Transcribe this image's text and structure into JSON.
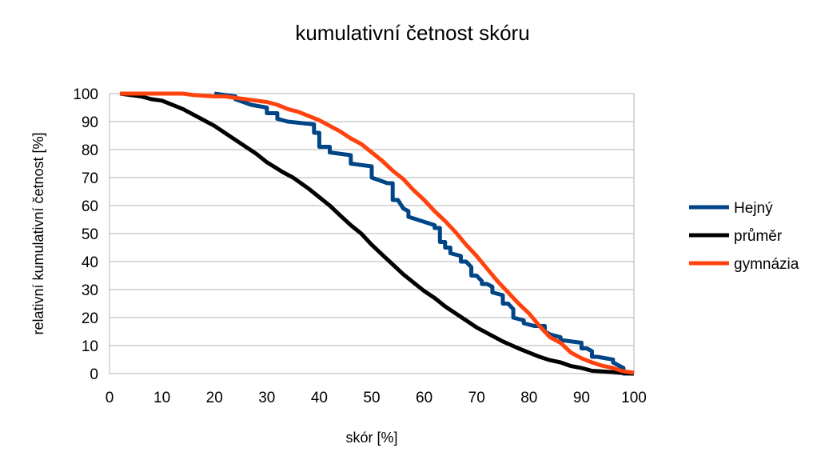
{
  "chart_data": {
    "type": "line",
    "title": "kumulativní četnost skóru",
    "xlabel": "skór [%]",
    "ylabel": "relativní kumulativní četnost [%]",
    "xlim": [
      0,
      100
    ],
    "ylim": [
      0,
      100
    ],
    "xticks": [
      0,
      10,
      20,
      30,
      40,
      50,
      60,
      70,
      80,
      90,
      100
    ],
    "yticks": [
      0,
      10,
      20,
      30,
      40,
      50,
      60,
      70,
      80,
      90,
      100
    ],
    "grid": "horizontal",
    "legend_position": "right",
    "series": [
      {
        "name": "Hejný",
        "color": "#004586",
        "points": [
          [
            20,
            100
          ],
          [
            24,
            99
          ],
          [
            24,
            98
          ],
          [
            27,
            96
          ],
          [
            30,
            95
          ],
          [
            30,
            93
          ],
          [
            32,
            93
          ],
          [
            32,
            91
          ],
          [
            34,
            90
          ],
          [
            39,
            89
          ],
          [
            39,
            86
          ],
          [
            40,
            86
          ],
          [
            40,
            81
          ],
          [
            42,
            81
          ],
          [
            42,
            79
          ],
          [
            46,
            78
          ],
          [
            46,
            75
          ],
          [
            50,
            74
          ],
          [
            50,
            70
          ],
          [
            53,
            68
          ],
          [
            54,
            68
          ],
          [
            54,
            62
          ],
          [
            55,
            62
          ],
          [
            56,
            59
          ],
          [
            57,
            58
          ],
          [
            57,
            56
          ],
          [
            62,
            53
          ],
          [
            62,
            52
          ],
          [
            63,
            52
          ],
          [
            63,
            47
          ],
          [
            64,
            47
          ],
          [
            64,
            45
          ],
          [
            65,
            45
          ],
          [
            65,
            43
          ],
          [
            67,
            42
          ],
          [
            67,
            40
          ],
          [
            68,
            40
          ],
          [
            69,
            38
          ],
          [
            69,
            35
          ],
          [
            70,
            35
          ],
          [
            71,
            33
          ],
          [
            71,
            32
          ],
          [
            72,
            32
          ],
          [
            73,
            31
          ],
          [
            73,
            29
          ],
          [
            75,
            28
          ],
          [
            75,
            25
          ],
          [
            76,
            25
          ],
          [
            77,
            23
          ],
          [
            77,
            20
          ],
          [
            79,
            19
          ],
          [
            79,
            18
          ],
          [
            81,
            17
          ],
          [
            83,
            17
          ],
          [
            83,
            15
          ],
          [
            84,
            14
          ],
          [
            86,
            13
          ],
          [
            86,
            12
          ],
          [
            90,
            11
          ],
          [
            90,
            9
          ],
          [
            91,
            9
          ],
          [
            92,
            8
          ],
          [
            92,
            6
          ],
          [
            93,
            6
          ],
          [
            96,
            5
          ],
          [
            96,
            4
          ],
          [
            97,
            3
          ],
          [
            98,
            2
          ],
          [
            98,
            0
          ],
          [
            100,
            0
          ]
        ]
      },
      {
        "name": "průměr",
        "color": "#000000",
        "points": [
          [
            2,
            100
          ],
          [
            6,
            99
          ],
          [
            8,
            98
          ],
          [
            10,
            97.5
          ],
          [
            14,
            94.5
          ],
          [
            20,
            88.5
          ],
          [
            24,
            83.5
          ],
          [
            28,
            78.5
          ],
          [
            30,
            75.5
          ],
          [
            33,
            72
          ],
          [
            35,
            70
          ],
          [
            38,
            66
          ],
          [
            40,
            63
          ],
          [
            42,
            60
          ],
          [
            44,
            56.5
          ],
          [
            46,
            53
          ],
          [
            48,
            50
          ],
          [
            50,
            46
          ],
          [
            52,
            42.5
          ],
          [
            54,
            39
          ],
          [
            56,
            35.5
          ],
          [
            58,
            32.5
          ],
          [
            60,
            29.5
          ],
          [
            62,
            27
          ],
          [
            64,
            24
          ],
          [
            66,
            21.5
          ],
          [
            68,
            19
          ],
          [
            70,
            16.5
          ],
          [
            72,
            14.5
          ],
          [
            75,
            11.5
          ],
          [
            78,
            9
          ],
          [
            80,
            7.5
          ],
          [
            82,
            6
          ],
          [
            84,
            4.8
          ],
          [
            86,
            4
          ],
          [
            88,
            2.7
          ],
          [
            90,
            2
          ],
          [
            92,
            1
          ],
          [
            94,
            0.8
          ],
          [
            96,
            0.5
          ],
          [
            98,
            0.2
          ],
          [
            100,
            0
          ]
        ]
      },
      {
        "name": "gymnázia",
        "color": "#ff420e",
        "points": [
          [
            2,
            100
          ],
          [
            10,
            100
          ],
          [
            14,
            100
          ],
          [
            16,
            99.5
          ],
          [
            20,
            99
          ],
          [
            22,
            99
          ],
          [
            24,
            98.5
          ],
          [
            26,
            98
          ],
          [
            28,
            97.5
          ],
          [
            30,
            97
          ],
          [
            32,
            96
          ],
          [
            34,
            94.5
          ],
          [
            36,
            93.5
          ],
          [
            38,
            92
          ],
          [
            40,
            90.5
          ],
          [
            42,
            88.5
          ],
          [
            44,
            86.5
          ],
          [
            46,
            84
          ],
          [
            48,
            82
          ],
          [
            50,
            79
          ],
          [
            52,
            76
          ],
          [
            54,
            72.5
          ],
          [
            56,
            69.5
          ],
          [
            58,
            65.5
          ],
          [
            60,
            62
          ],
          [
            62,
            58
          ],
          [
            64,
            54.5
          ],
          [
            66,
            50.5
          ],
          [
            68,
            46
          ],
          [
            70,
            42
          ],
          [
            72,
            37.5
          ],
          [
            74,
            33
          ],
          [
            76,
            29
          ],
          [
            78,
            25
          ],
          [
            80,
            21.5
          ],
          [
            82,
            17
          ],
          [
            84,
            13
          ],
          [
            86,
            11
          ],
          [
            88,
            7.5
          ],
          [
            90,
            5.5
          ],
          [
            92,
            4
          ],
          [
            94,
            2.8
          ],
          [
            96,
            2
          ],
          [
            98,
            0.8
          ],
          [
            100,
            0.3
          ]
        ]
      }
    ]
  }
}
